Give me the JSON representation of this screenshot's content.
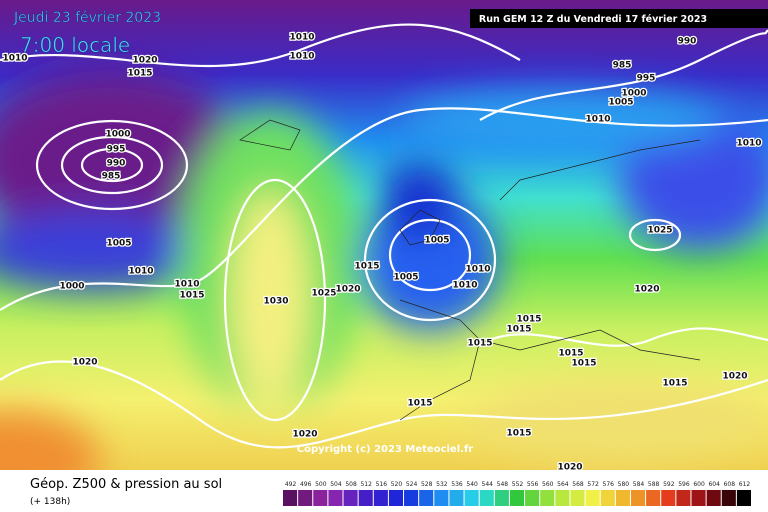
{
  "header": {
    "date": "Jeudi 23 février 2023",
    "time": "7:00 locale",
    "run": "Run GEM 12 Z du Vendredi 17 février 2023"
  },
  "isobar_labels": [
    "1010",
    "1020",
    "1015",
    "1010",
    "1010",
    "990",
    "985",
    "995",
    "1000",
    "1005",
    "1010",
    "1010",
    "1000",
    "995",
    "990",
    "985",
    "1005",
    "1010",
    "1000",
    "1010",
    "1015",
    "1030",
    "1025",
    "1020",
    "1015",
    "1005",
    "1005",
    "1010",
    "1010",
    "1025",
    "1020",
    "1015",
    "1015",
    "1015",
    "1015",
    "1015",
    "1015",
    "1020",
    "1020",
    "1015",
    "1020",
    "1015",
    "1020"
  ],
  "copyright": "Copyright (c) 2023 Meteociel.fr",
  "footer": {
    "title": "Géop. Z500 & pression au sol",
    "subtitle": "(+ 138h)"
  },
  "scale": [
    492,
    496,
    500,
    504,
    508,
    512,
    516,
    520,
    524,
    528,
    532,
    536,
    540,
    544,
    548,
    552,
    556,
    560,
    564,
    568,
    572,
    576,
    580,
    584,
    588,
    592,
    596,
    600,
    604,
    608,
    612
  ]
}
